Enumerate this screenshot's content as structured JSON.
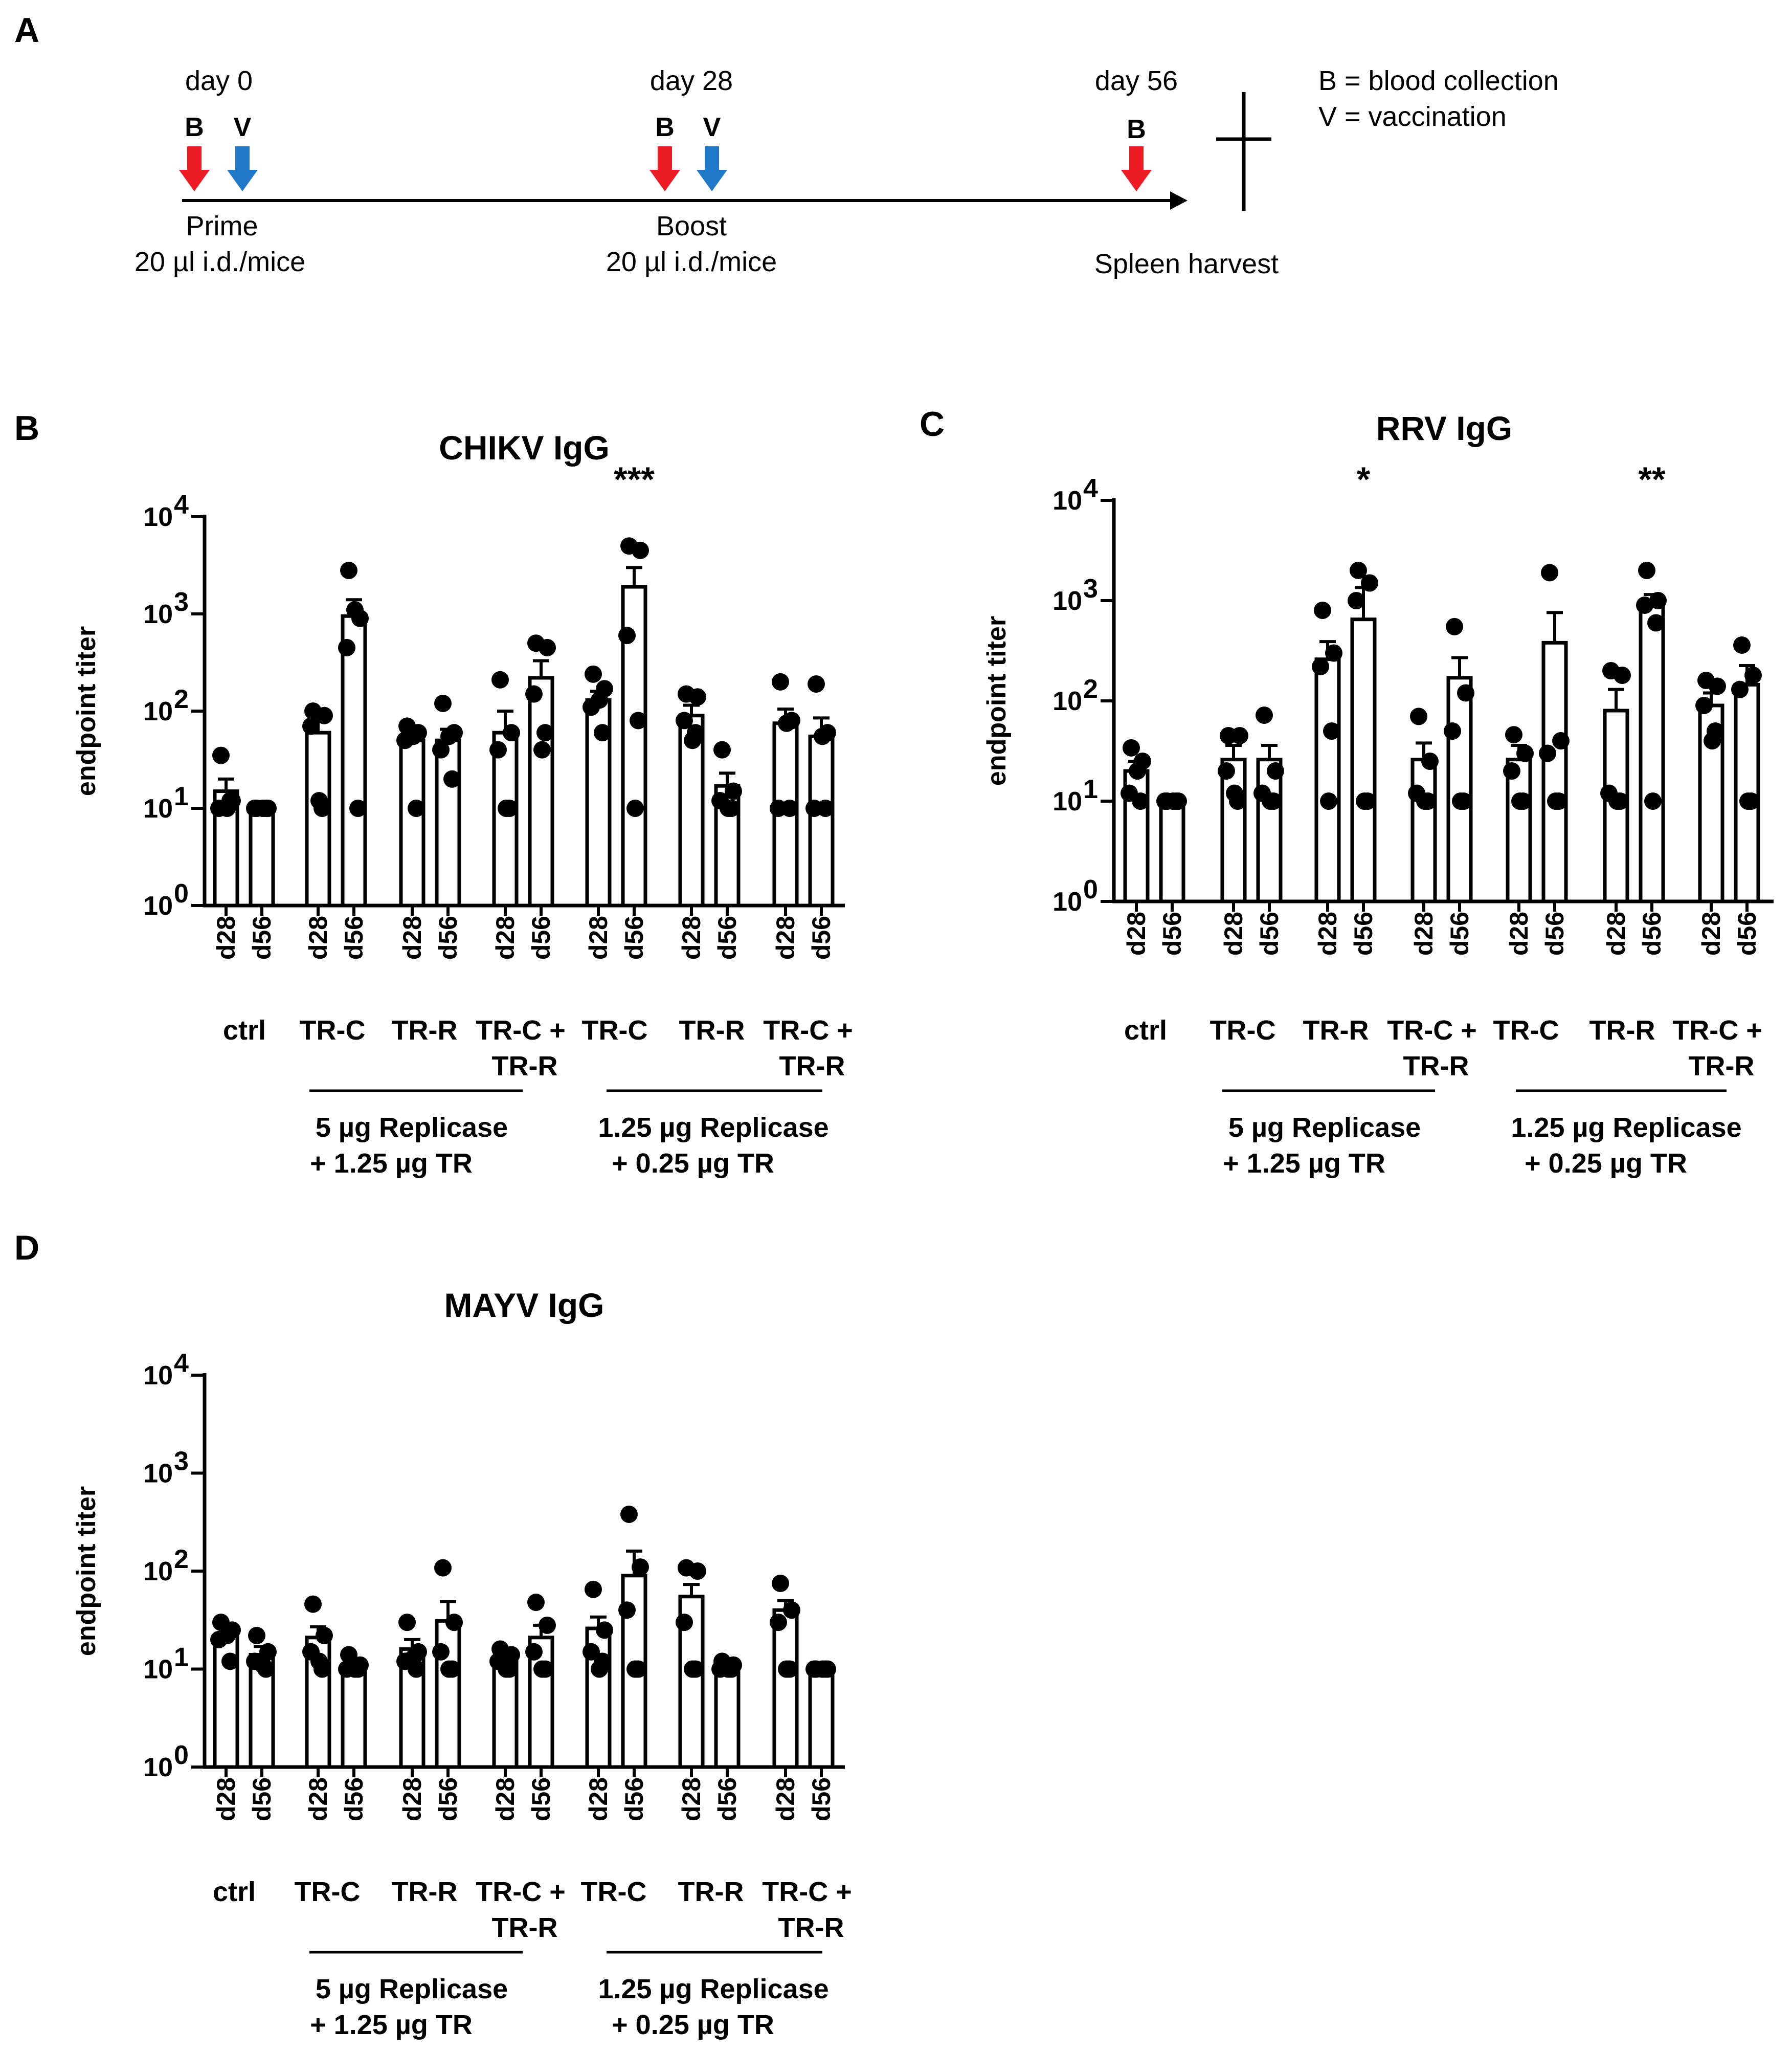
{
  "panel_labels": {
    "A": "A",
    "B": "B",
    "C": "C",
    "D": "D"
  },
  "timeline": {
    "days": [
      "day 0",
      "day 28",
      "day 56"
    ],
    "markers": {
      "blood": "B",
      "vaccination": "V"
    },
    "events": [
      {
        "name": "Prime",
        "detail": "20 µl i.d./mice"
      },
      {
        "name": "Boost",
        "detail": "20 µl i.d./mice"
      },
      {
        "name": "Spleen  harvest",
        "detail": ""
      }
    ],
    "legend": [
      "B = blood  collection",
      "V = vaccination"
    ],
    "colors": {
      "blood": "#ee1c25",
      "vaccination": "#1f78c8"
    }
  },
  "chart_data": [
    {
      "type": "bar",
      "title": "CHIKV IgG",
      "ylabel": "endpoint titer",
      "yscale": "log",
      "ylim": [
        1,
        10000
      ],
      "yticks": [
        {
          "base": "10",
          "exp": "0"
        },
        {
          "base": "10",
          "exp": "1"
        },
        {
          "base": "10",
          "exp": "2"
        },
        {
          "base": "10",
          "exp": "3"
        },
        {
          "base": "10",
          "exp": "4"
        }
      ],
      "categories": [
        "d28",
        "d56",
        "d28",
        "d56",
        "d28",
        "d56",
        "d28",
        "d56",
        "d28",
        "d56",
        "d28",
        "d56",
        "d28",
        "d56"
      ],
      "values": [
        15,
        10,
        60,
        950,
        50,
        50,
        60,
        220,
        130,
        1900,
        90,
        17,
        75,
        55
      ],
      "errors": [
        5,
        0,
        40,
        450,
        15,
        15,
        40,
        110,
        30,
        1100,
        25,
        6,
        30,
        30
      ],
      "points": [
        [
          35,
          12,
          10,
          12,
          10
        ],
        [
          10,
          10,
          10,
          10,
          10
        ],
        [
          100,
          90,
          70,
          10,
          12
        ],
        [
          2800,
          900,
          450,
          10,
          1100
        ],
        [
          70,
          60,
          50,
          10,
          55
        ],
        [
          120,
          60,
          40,
          20,
          55
        ],
        [
          210,
          60,
          40,
          10,
          10
        ],
        [
          500,
          450,
          150,
          60,
          40
        ],
        [
          240,
          170,
          110,
          60,
          130
        ],
        [
          5000,
          4500,
          600,
          80,
          10
        ],
        [
          150,
          140,
          80,
          60,
          50
        ],
        [
          40,
          15,
          12,
          10,
          10
        ],
        [
          200,
          80,
          10,
          10,
          75
        ],
        [
          190,
          60,
          10,
          10,
          55
        ]
      ],
      "groups": [
        [
          "ctrl"
        ],
        [
          "TR-C"
        ],
        [
          "TR-R"
        ],
        [
          "TR-C +",
          "TR-R"
        ],
        [
          "TR-C"
        ],
        [
          "TR-R"
        ],
        [
          "TR-C +",
          "TR-R"
        ]
      ],
      "conditions": [
        [
          "5 µg Replicase",
          "+ 1.25 µg TR"
        ],
        [
          "1.25 µg Replicase",
          "+ 0.25 µg TR"
        ]
      ],
      "significance": [
        {
          "bar": 9,
          "label": "***"
        }
      ]
    },
    {
      "type": "bar",
      "title": "RRV IgG",
      "ylabel": "endpoint titer",
      "yscale": "log",
      "ylim": [
        1,
        10000
      ],
      "yticks": [
        {
          "base": "10",
          "exp": "0"
        },
        {
          "base": "10",
          "exp": "1"
        },
        {
          "base": "10",
          "exp": "2"
        },
        {
          "base": "10",
          "exp": "3"
        },
        {
          "base": "10",
          "exp": "4"
        }
      ],
      "categories": [
        "d28",
        "d56",
        "d28",
        "d56",
        "d28",
        "d56",
        "d28",
        "d56",
        "d28",
        "d56",
        "d28",
        "d56",
        "d28",
        "d56"
      ],
      "values": [
        20,
        10,
        26,
        26,
        260,
        650,
        26,
        170,
        26,
        380,
        80,
        1000,
        90,
        145
      ],
      "errors": [
        5,
        0,
        10,
        10,
        130,
        700,
        12,
        100,
        10,
        380,
        50,
        150,
        30,
        80
      ],
      "points": [
        [
          34,
          25,
          12,
          10,
          20
        ],
        [
          10,
          10,
          10,
          10,
          10
        ],
        [
          45,
          45,
          20,
          10,
          12
        ],
        [
          72,
          20,
          12,
          10,
          10
        ],
        [
          800,
          300,
          220,
          50,
          10
        ],
        [
          2000,
          1500,
          1000,
          10,
          10
        ],
        [
          70,
          25,
          12,
          10,
          10
        ],
        [
          550,
          120,
          50,
          10,
          10
        ],
        [
          46,
          30,
          20,
          10,
          10
        ],
        [
          1900,
          40,
          30,
          10,
          10
        ],
        [
          200,
          180,
          12,
          10,
          10
        ],
        [
          2000,
          1000,
          900,
          600,
          10
        ],
        [
          160,
          140,
          90,
          50,
          40
        ],
        [
          360,
          180,
          130,
          10,
          10
        ]
      ],
      "groups": [
        [
          "ctrl"
        ],
        [
          "TR-C"
        ],
        [
          "TR-R"
        ],
        [
          "TR-C +",
          "TR-R"
        ],
        [
          "TR-C"
        ],
        [
          "TR-R"
        ],
        [
          "TR-C +",
          "TR-R"
        ]
      ],
      "conditions": [
        [
          "5 µg Replicase",
          "+ 1.25 µg TR"
        ],
        [
          "1.25 µg Replicase",
          "+ 0.25 µg TR"
        ]
      ],
      "significance": [
        {
          "bar": 5,
          "label": "*"
        },
        {
          "bar": 11,
          "label": "**"
        }
      ]
    },
    {
      "type": "bar",
      "title": "MAYV IgG",
      "ylabel": "endpoint titer",
      "yscale": "log",
      "ylim": [
        1,
        10000
      ],
      "yticks": [
        {
          "base": "10",
          "exp": "0"
        },
        {
          "base": "10",
          "exp": "1"
        },
        {
          "base": "10",
          "exp": "2"
        },
        {
          "base": "10",
          "exp": "3"
        },
        {
          "base": "10",
          "exp": "4"
        }
      ],
      "categories": [
        "d28",
        "d56",
        "d28",
        "d56",
        "d28",
        "d56",
        "d28",
        "d56",
        "d28",
        "d56",
        "d28",
        "d56",
        "d28",
        "d56"
      ],
      "values": [
        22,
        14,
        21,
        11,
        16,
        31,
        12,
        21,
        26,
        90,
        55,
        11,
        40,
        10
      ],
      "errors": [
        4,
        3,
        6,
        1,
        4,
        18,
        2,
        7,
        8,
        70,
        18,
        1,
        10,
        0
      ],
      "points": [
        [
          30,
          25,
          20,
          12,
          22
        ],
        [
          22,
          15,
          12,
          10,
          11
        ],
        [
          46,
          22,
          15,
          10,
          12
        ],
        [
          14,
          11,
          10,
          10,
          10
        ],
        [
          30,
          15,
          12,
          10,
          13
        ],
        [
          108,
          30,
          15,
          10,
          10
        ],
        [
          16,
          14,
          12,
          10,
          10
        ],
        [
          48,
          28,
          15,
          10,
          10
        ],
        [
          65,
          25,
          15,
          12,
          10
        ],
        [
          380,
          110,
          40,
          10,
          10
        ],
        [
          108,
          100,
          30,
          10,
          10
        ],
        [
          12,
          11,
          10,
          10,
          10
        ],
        [
          75,
          40,
          30,
          10,
          10
        ],
        [
          10,
          10,
          10,
          10,
          10
        ]
      ],
      "groups": [
        [
          "ctrl"
        ],
        [
          "TR-C"
        ],
        [
          "TR-R"
        ],
        [
          "TR-C +",
          "TR-R"
        ],
        [
          "TR-C"
        ],
        [
          "TR-R"
        ],
        [
          "TR-C +",
          "TR-R"
        ]
      ],
      "conditions": [
        [
          "5 µg Replicase",
          "+ 1.25 µg TR"
        ],
        [
          "1.25 µg Replicase",
          "+ 0.25 µg TR"
        ]
      ],
      "significance": []
    }
  ]
}
